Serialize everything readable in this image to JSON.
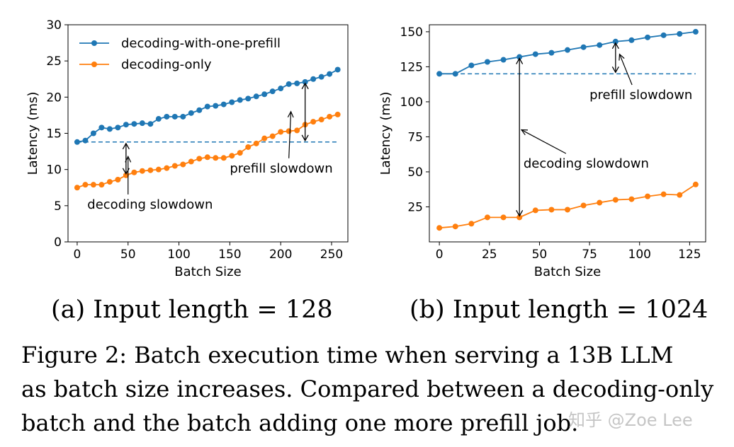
{
  "chart_data": [
    {
      "type": "line",
      "subcaption": "(a) Input length = 128",
      "xlabel": "Batch Size",
      "ylabel": "Latency (ms)",
      "xlim": [
        -9,
        266
      ],
      "ylim": [
        0,
        30
      ],
      "xticks": [
        0,
        50,
        100,
        150,
        200,
        250
      ],
      "yticks": [
        0,
        5,
        10,
        15,
        20,
        25,
        30
      ],
      "legend": "upper-left",
      "series": [
        {
          "name": "decoding-with-one-prefill",
          "color": "#1f77b4",
          "x": [
            0,
            8,
            16,
            24,
            32,
            40,
            48,
            56,
            64,
            72,
            80,
            88,
            96,
            104,
            112,
            120,
            128,
            136,
            144,
            152,
            160,
            168,
            176,
            184,
            192,
            200,
            208,
            216,
            224,
            232,
            240,
            248,
            256
          ],
          "y": [
            13.8,
            14.0,
            15.0,
            15.8,
            15.6,
            15.8,
            16.2,
            16.3,
            16.4,
            16.3,
            17.0,
            17.3,
            17.3,
            17.3,
            17.8,
            18.2,
            18.7,
            18.8,
            19.0,
            19.3,
            19.6,
            19.8,
            20.1,
            20.4,
            20.8,
            21.2,
            21.8,
            21.9,
            22.1,
            22.5,
            22.8,
            23.2,
            23.8
          ]
        },
        {
          "name": "decoding-only",
          "color": "#ff7f0e",
          "x": [
            0,
            8,
            16,
            24,
            32,
            40,
            48,
            56,
            64,
            72,
            80,
            88,
            96,
            104,
            112,
            120,
            128,
            136,
            144,
            152,
            160,
            168,
            176,
            184,
            192,
            200,
            208,
            216,
            224,
            232,
            240,
            248,
            256
          ],
          "y": [
            7.5,
            7.9,
            7.9,
            7.9,
            8.3,
            8.6,
            9.2,
            9.6,
            9.8,
            9.9,
            10.0,
            10.2,
            10.5,
            10.7,
            11.1,
            11.5,
            11.7,
            11.6,
            11.6,
            11.9,
            12.3,
            13.1,
            13.6,
            14.3,
            14.6,
            15.2,
            15.3,
            15.4,
            16.2,
            16.6,
            16.9,
            17.3,
            17.6
          ]
        }
      ],
      "baseline": {
        "y": 13.8,
        "x_end": 256,
        "color": "#1f77b4"
      },
      "annotations": [
        {
          "text": "prefill slowdown",
          "arrow_x": 224,
          "y_low": 13.8,
          "y_high": 22.1,
          "anchor_x": 210,
          "anchor_y": 18.0,
          "text_x": 150,
          "text_y": 9.6
        },
        {
          "text": "decoding slowdown",
          "arrow_x": 48,
          "y_low": 9.2,
          "y_high": 13.8,
          "anchor_x": 50,
          "anchor_y": 11.8,
          "text_x": 10,
          "text_y": 4.6
        }
      ]
    },
    {
      "type": "line",
      "subcaption": "(b) Input length = 1024",
      "xlabel": "Batch Size",
      "ylabel": "Latency (ms)",
      "xlim": [
        -5,
        133
      ],
      "ylim": [
        0,
        155
      ],
      "xticks": [
        0,
        25,
        50,
        75,
        100,
        125
      ],
      "yticks": [
        25,
        50,
        75,
        100,
        125,
        150
      ],
      "series": [
        {
          "name": "decoding-with-one-prefill",
          "color": "#1f77b4",
          "x": [
            0,
            8,
            16,
            24,
            32,
            40,
            48,
            56,
            64,
            72,
            80,
            88,
            96,
            104,
            112,
            120,
            128
          ],
          "y": [
            120,
            120,
            126,
            128.5,
            130,
            132,
            134,
            135,
            137,
            139,
            140.5,
            143,
            144,
            146,
            147.5,
            148.5,
            150
          ]
        },
        {
          "name": "decoding-only",
          "color": "#ff7f0e",
          "x": [
            0,
            8,
            16,
            24,
            32,
            40,
            48,
            56,
            64,
            72,
            80,
            88,
            96,
            104,
            112,
            120,
            128
          ],
          "y": [
            10,
            11,
            13,
            17.5,
            17.5,
            17.5,
            22.5,
            23,
            23,
            26,
            28,
            30,
            30.5,
            32.5,
            34,
            33.5,
            41
          ]
        }
      ],
      "baseline": {
        "y": 120,
        "x_end": 128,
        "color": "#1f77b4"
      },
      "annotations": [
        {
          "text": "prefill slowdown",
          "arrow_x": 88,
          "y_low": 120,
          "y_high": 143,
          "anchor_x": 90,
          "anchor_y": 134,
          "text_x": 75,
          "text_y": 102
        },
        {
          "text": "decoding slowdown",
          "arrow_x": 40,
          "y_low": 17.5,
          "y_high": 132,
          "anchor_x": 41,
          "anchor_y": 80,
          "text_x": 42,
          "text_y": 53
        }
      ]
    }
  ],
  "caption_lines": [
    "Figure 2: Batch execution time when serving a 13B LLM",
    "as batch size increases. Compared between a decoding-only",
    "batch and the batch adding one more prefill job."
  ],
  "watermark": "知乎 @Zoe Lee"
}
